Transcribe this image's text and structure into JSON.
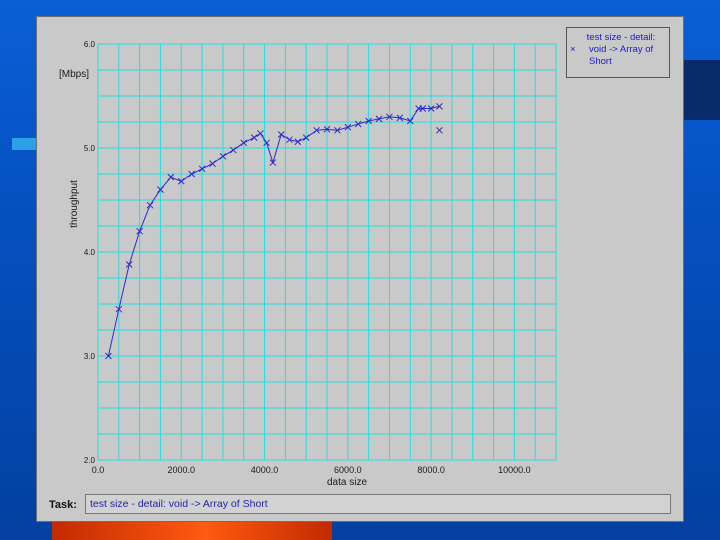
{
  "window": {
    "task_label": "Task:",
    "task_value": "test size - detail: void -> Array of Short"
  },
  "legend": {
    "title": "test size - detail:",
    "marker": "×",
    "series_name": "void -> Array of Short"
  },
  "colors": {
    "grid": "#22e0e0",
    "series": "#2a2acc",
    "panel": "#c9c9c9",
    "axis_text": "#1a1a1a"
  },
  "chart_data": {
    "type": "line",
    "title": "",
    "xlabel": "data size",
    "ylabel": "throughput",
    "y_unit_label": "[Mbps]",
    "xlim": [
      0,
      11000
    ],
    "ylim": [
      2.0,
      6.0
    ],
    "x_ticks": [
      {
        "value": 0,
        "label": "0.0"
      },
      {
        "value": 2000,
        "label": "2000.0"
      },
      {
        "value": 4000,
        "label": "4000.0"
      },
      {
        "value": 6000,
        "label": "6000.0"
      },
      {
        "value": 8000,
        "label": "8000.0"
      },
      {
        "value": 10000,
        "label": "10000.0"
      }
    ],
    "y_ticks": [
      {
        "value": 2.0,
        "label": "2.0"
      },
      {
        "value": 3.0,
        "label": "3.0"
      },
      {
        "value": 4.0,
        "label": "4.0"
      },
      {
        "value": 5.0,
        "label": "5.0"
      },
      {
        "value": 6.0,
        "label": "6.0"
      }
    ],
    "grid": true,
    "legend_position": "top-right",
    "series": [
      {
        "name": "void -> Array of Short",
        "x": [
          250,
          500,
          750,
          1000,
          1250,
          1500,
          1750,
          2000,
          2250,
          2500,
          2750,
          3000,
          3250,
          3500,
          3750,
          3900,
          4050,
          4200,
          4400,
          4600,
          4800,
          5000,
          5250,
          5500,
          5750,
          6000,
          6250,
          6500,
          6750,
          7000,
          7250,
          7500,
          7700,
          8000,
          8200
        ],
        "y": [
          3.0,
          3.45,
          3.88,
          4.2,
          4.45,
          4.6,
          4.72,
          4.68,
          4.75,
          4.8,
          4.85,
          4.92,
          4.98,
          5.05,
          5.1,
          5.14,
          5.05,
          4.86,
          5.13,
          5.08,
          5.06,
          5.1,
          5.17,
          5.18,
          5.17,
          5.2,
          5.23,
          5.26,
          5.28,
          5.3,
          5.29,
          5.26,
          5.38,
          5.38,
          5.4
        ]
      }
    ],
    "outliers": [
      {
        "x": 7800,
        "y": 5.38
      },
      {
        "x": 8200,
        "y": 5.17
      }
    ]
  }
}
